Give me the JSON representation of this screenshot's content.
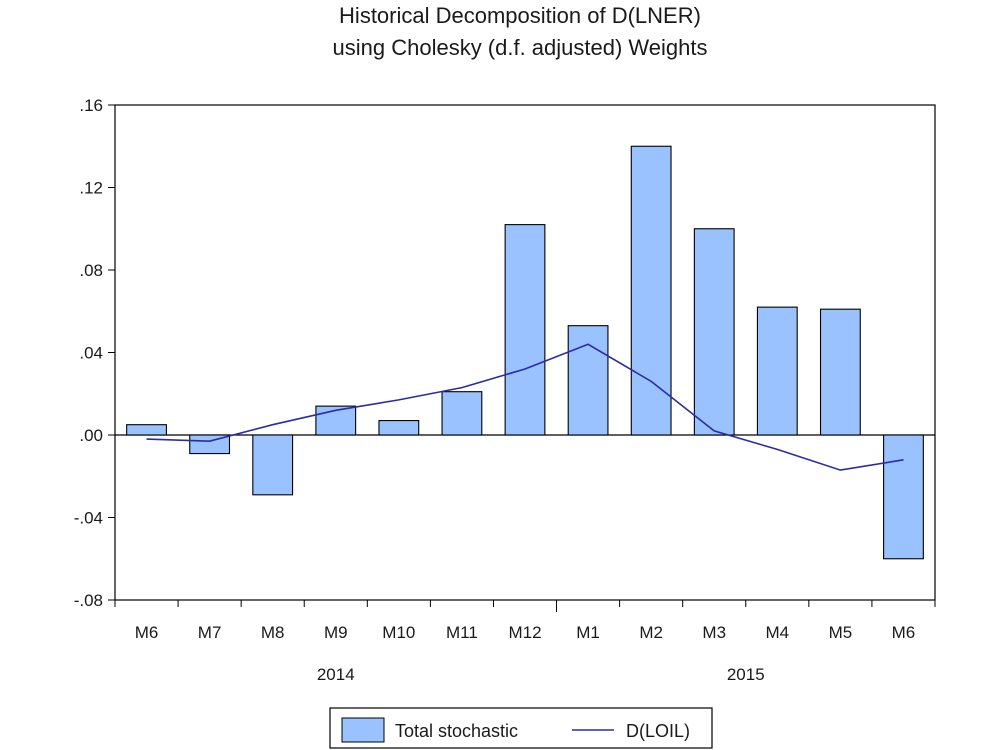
{
  "chart_data": {
    "type": "bar",
    "title": [
      "Historical Decomposition of D(LNER)",
      "using Cholesky (d.f. adjusted) Weights"
    ],
    "categories": [
      "M6",
      "M7",
      "M8",
      "M9",
      "M10",
      "M11",
      "M12",
      "M1",
      "M2",
      "M3",
      "M4",
      "M5",
      "M6"
    ],
    "year_labels": [
      {
        "label": "2014",
        "category_span": [
          0,
          6
        ]
      },
      {
        "label": "2015",
        "category_span": [
          7,
          12
        ]
      }
    ],
    "ylim": [
      -0.08,
      0.16
    ],
    "yticks": [
      0.16,
      0.12,
      0.08,
      0.04,
      0.0,
      -0.04,
      -0.08
    ],
    "ytick_labels": [
      ".16",
      ".12",
      ".08",
      ".04",
      ".00",
      "-.04",
      "-.08"
    ],
    "grid": false,
    "legend_position": "bottom-center",
    "series": [
      {
        "name": "Total stochastic",
        "kind": "bar",
        "color": "#99c2ff",
        "values": [
          0.005,
          -0.009,
          -0.029,
          0.014,
          0.007,
          0.021,
          0.102,
          0.053,
          0.14,
          0.1,
          0.062,
          0.061,
          -0.06
        ]
      },
      {
        "name": "D(LOIL)",
        "kind": "line",
        "color": "#2b2ba8",
        "values": [
          -0.002,
          -0.003,
          0.005,
          0.012,
          0.017,
          0.023,
          0.032,
          0.044,
          0.026,
          0.002,
          -0.007,
          -0.017,
          -0.012
        ]
      }
    ]
  }
}
